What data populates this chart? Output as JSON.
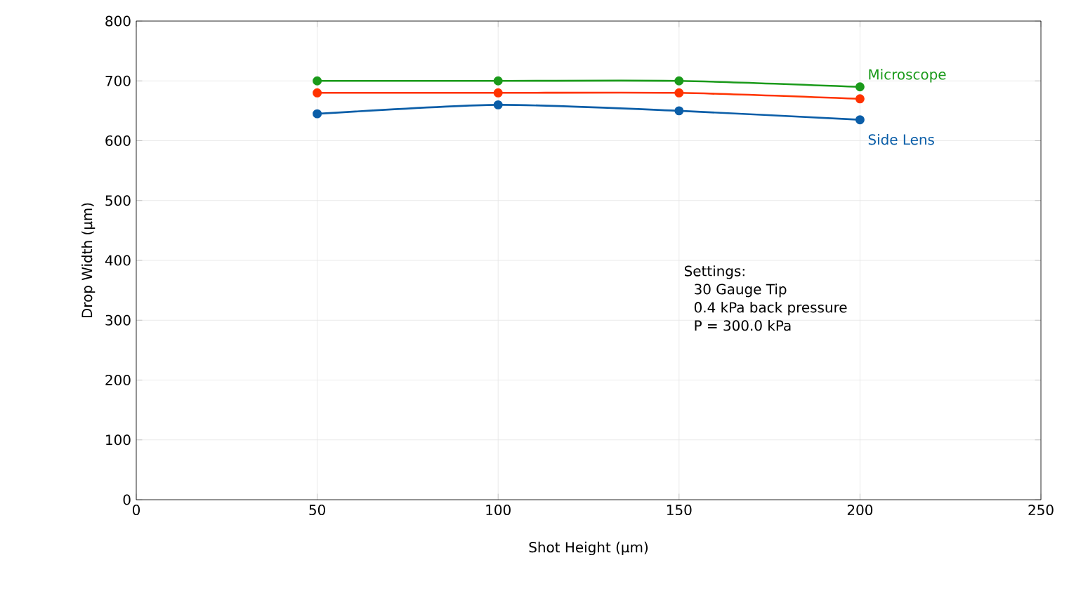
{
  "chart_data": {
    "type": "line",
    "xlabel": "Shot Height (µm)",
    "ylabel": "Drop Width (µm)",
    "x": [
      50,
      100,
      150,
      200
    ],
    "series": [
      {
        "name": "Microscope",
        "color": "#1a9a1a",
        "values": [
          700,
          700,
          700,
          690
        ]
      },
      {
        "color": "#ff3300",
        "values": [
          680,
          680,
          680,
          670
        ]
      },
      {
        "name": "Side Lens",
        "color": "#0b5ea8",
        "values": [
          645,
          660,
          650,
          635
        ]
      }
    ],
    "xlim": [
      0,
      250
    ],
    "xticks": [
      0,
      50,
      100,
      150,
      200,
      250
    ],
    "ylim": [
      0,
      800
    ],
    "yticks": [
      0,
      100,
      200,
      300,
      400,
      500,
      600,
      700,
      800
    ],
    "grid": true,
    "marker": "circle",
    "line_style": "solid",
    "annotations": [
      "Settings:",
      "30 Gauge Tip",
      "0.4 kPa back pressure",
      "P = 300.0 kPa"
    ]
  }
}
